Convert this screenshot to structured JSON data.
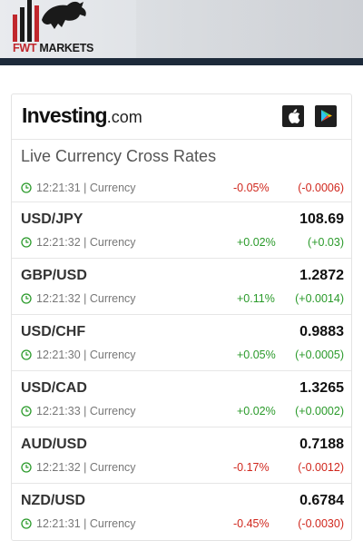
{
  "header": {
    "logo_prefix": "FWT",
    "logo_suffix": "MARKETS",
    "logo_icon": "bull-and-bars-logo"
  },
  "widget": {
    "brand_main": "Investing",
    "brand_domain": ".com",
    "apple_icon": "apple-icon",
    "play_icon": "google-play-icon",
    "title": "Live Currency Cross Rates",
    "first_row": {
      "meta": "12:21:31 | Currency",
      "pct": "-0.05%",
      "chg": "(-0.0006)",
      "dir": "down"
    },
    "rows": [
      {
        "pair": "USD/JPY",
        "price": "108.69",
        "meta": "12:21:32 | Currency",
        "pct": "+0.02%",
        "chg": "(+0.03)",
        "dir": "up"
      },
      {
        "pair": "GBP/USD",
        "price": "1.2872",
        "meta": "12:21:32 | Currency",
        "pct": "+0.11%",
        "chg": "(+0.0014)",
        "dir": "up"
      },
      {
        "pair": "USD/CHF",
        "price": "0.9883",
        "meta": "12:21:30 | Currency",
        "pct": "+0.05%",
        "chg": "(+0.0005)",
        "dir": "up"
      },
      {
        "pair": "USD/CAD",
        "price": "1.3265",
        "meta": "12:21:33 | Currency",
        "pct": "+0.02%",
        "chg": "(+0.0002)",
        "dir": "up"
      },
      {
        "pair": "AUD/USD",
        "price": "0.7188",
        "meta": "12:21:32 | Currency",
        "pct": "-0.17%",
        "chg": "(-0.0012)",
        "dir": "down"
      },
      {
        "pair": "NZD/USD",
        "price": "0.6784",
        "meta": "12:21:31 | Currency",
        "pct": "-0.45%",
        "chg": "(-0.0030)",
        "dir": "down"
      }
    ],
    "colors": {
      "up": "#2a9a2a",
      "down": "#d0271d"
    }
  }
}
